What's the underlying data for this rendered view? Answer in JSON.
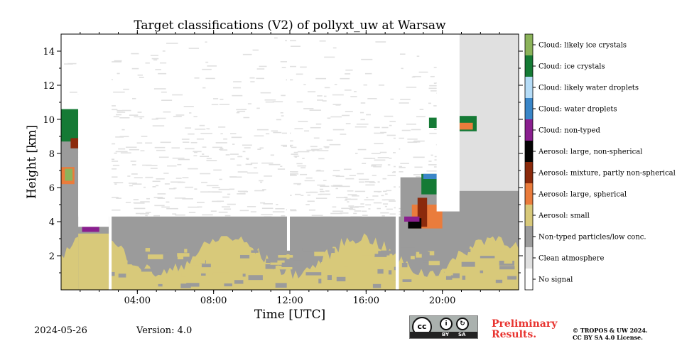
{
  "chart_data": {
    "type": "heatmap",
    "title": "Target classifications (V2) of pollyxt_uw at Warsaw",
    "xlabel": "Time [UTC]",
    "ylabel": "Height [km]",
    "xlim": [
      0,
      24
    ],
    "ylim": [
      0,
      15
    ],
    "xticks": [
      4,
      8,
      12,
      16,
      20
    ],
    "xtick_labels": [
      "04:00",
      "08:00",
      "12:00",
      "16:00",
      "20:00"
    ],
    "yticks": [
      2,
      4,
      6,
      8,
      10,
      12,
      14
    ],
    "ytick_labels": [
      "2",
      "4",
      "6",
      "8",
      "10",
      "12",
      "14"
    ],
    "classes": [
      {
        "label": "No signal",
        "color": "#ffffff"
      },
      {
        "label": "Clean atmosphere",
        "color": "#e0e0e0"
      },
      {
        "label": "Non-typed particles/low conc.",
        "color": "#9b9b9b"
      },
      {
        "label": "Aerosol: small",
        "color": "#d8c97a"
      },
      {
        "label": "Aerosol: large, spherical",
        "color": "#ea7c3c"
      },
      {
        "label": "Aerosol: mixture, partly non-spherical",
        "color": "#8b2a0c"
      },
      {
        "label": "Aerosol: large, non-spherical",
        "color": "#050505"
      },
      {
        "label": "Cloud: non-typed",
        "color": "#8a1f8f"
      },
      {
        "label": "Cloud: water droplets",
        "color": "#3a86c8"
      },
      {
        "label": "Cloud: likely water droplets",
        "color": "#b5dcf7"
      },
      {
        "label": "Cloud: ice crystals",
        "color": "#157a35"
      },
      {
        "label": "Cloud: likely ice crystals",
        "color": "#8bb35a"
      }
    ],
    "regions": [
      {
        "class": "Clean atmosphere",
        "x": [
          0,
          24
        ],
        "y": [
          3.4,
          15
        ],
        "pattern": "sparse"
      },
      {
        "class": "Non-typed particles/low conc.",
        "x": [
          0,
          24
        ],
        "y": [
          0,
          4.3
        ]
      },
      {
        "class": "Aerosol: small",
        "x": [
          0,
          24
        ],
        "y": [
          0,
          3.0
        ],
        "pattern": "layer"
      },
      {
        "class": "Non-typed particles/low conc.",
        "x": [
          0.9,
          2.5
        ],
        "y": [
          0,
          3.5
        ]
      },
      {
        "class": "Aerosol: small",
        "x": [
          0.9,
          2.5
        ],
        "y": [
          0,
          3.3
        ]
      },
      {
        "class": "Non-typed particles/low conc.",
        "x": [
          0,
          0.9
        ],
        "y": [
          4.0,
          10.5
        ]
      },
      {
        "class": "Non-typed particles/low conc.",
        "x": [
          20.2,
          24
        ],
        "y": [
          3.5,
          14.9
        ]
      },
      {
        "class": "Clean atmosphere",
        "x": [
          20.5,
          24
        ],
        "y": [
          5.8,
          15
        ]
      },
      {
        "class": "Non-typed particles/low conc.",
        "x": [
          17.8,
          20.3
        ],
        "y": [
          3.0,
          6.6
        ]
      },
      {
        "class": "Cloud: ice crystals",
        "x": [
          0,
          0.9
        ],
        "y": [
          8.7,
          10.6
        ]
      },
      {
        "class": "Aerosol: mixture, partly non-spherical",
        "x": [
          0.5,
          0.9
        ],
        "y": [
          8.3,
          8.9
        ]
      },
      {
        "class": "Aerosol: large, spherical",
        "x": [
          0,
          0.7
        ],
        "y": [
          6.2,
          7.2
        ]
      },
      {
        "class": "Cloud: likely ice crystals",
        "x": [
          0.2,
          0.6
        ],
        "y": [
          6.4,
          7.1
        ]
      },
      {
        "class": "Cloud: non-typed",
        "x": [
          1.1,
          2.0
        ],
        "y": [
          3.4,
          3.7
        ]
      },
      {
        "class": "Aerosol: large, spherical",
        "x": [
          18.4,
          20.0
        ],
        "y": [
          3.6,
          5.0
        ]
      },
      {
        "class": "Aerosol: mixture, partly non-spherical",
        "x": [
          18.7,
          19.2
        ],
        "y": [
          3.7,
          5.4
        ]
      },
      {
        "class": "Aerosol: large, non-spherical",
        "x": [
          18.2,
          18.9
        ],
        "y": [
          3.6,
          4.2
        ]
      },
      {
        "class": "Cloud: ice crystals",
        "x": [
          18.9,
          19.7
        ],
        "y": [
          5.6,
          6.8
        ]
      },
      {
        "class": "Cloud: water droplets",
        "x": [
          19.0,
          19.8
        ],
        "y": [
          6.5,
          6.8
        ]
      },
      {
        "class": "Cloud: non-typed",
        "x": [
          18.0,
          18.8
        ],
        "y": [
          4.0,
          4.3
        ]
      },
      {
        "class": "Cloud: ice crystals",
        "x": [
          19.3,
          20.3
        ],
        "y": [
          9.5,
          10.1
        ]
      },
      {
        "class": "Cloud: ice crystals",
        "x": [
          20.9,
          21.8
        ],
        "y": [
          9.3,
          10.2
        ]
      },
      {
        "class": "Aerosol: large, spherical",
        "x": [
          20.9,
          21.6
        ],
        "y": [
          9.4,
          9.8
        ]
      }
    ],
    "no_signal_gaps": [
      {
        "x": [
          0.9,
          2.5
        ],
        "y": [
          3.7,
          15
        ]
      },
      {
        "x": [
          2.5,
          2.65
        ],
        "y": [
          0,
          15
        ]
      },
      {
        "x": [
          11.85,
          12.0
        ],
        "y": [
          2.3,
          15
        ]
      },
      {
        "x": [
          17.55,
          17.72
        ],
        "y": [
          0,
          15
        ]
      },
      {
        "x": [
          19.7,
          20.9
        ],
        "y": [
          4.6,
          15
        ]
      }
    ]
  },
  "footer": {
    "date": "2024-05-26",
    "version": "Version: 4.0",
    "preliminary_line1": "Preliminary",
    "preliminary_line2": "Results.",
    "copyright_line1": "© TROPOS & UW 2024.",
    "copyright_line2": "CC BY SA 4.0 License.",
    "license_badge": {
      "cc": "cc",
      "by": "BY",
      "sa": "SA"
    }
  }
}
